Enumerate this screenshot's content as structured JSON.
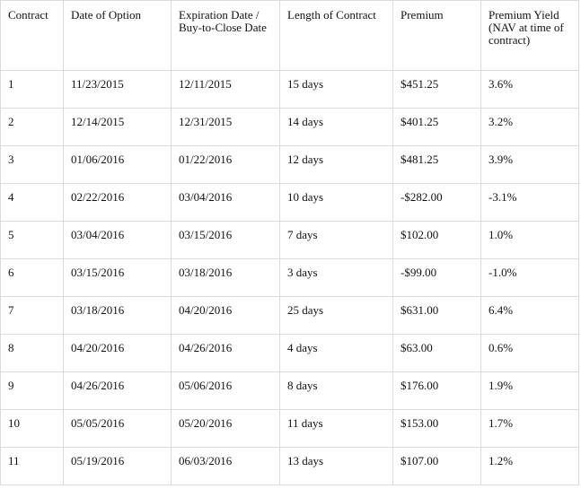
{
  "table": {
    "header": [
      "Contract",
      "Date of Option",
      "Expiration Date / Buy-to-Close Date",
      "Length of Contract",
      "Premium",
      "Premium Yield (NAV at time of contract)"
    ],
    "rows": [
      [
        "1",
        "11/23/2015",
        "12/11/2015",
        "15 days",
        "$451.25",
        "3.6%"
      ],
      [
        "2",
        "12/14/2015",
        "12/31/2015",
        "14 days",
        "$401.25",
        "3.2%"
      ],
      [
        "3",
        "01/06/2016",
        "01/22/2016",
        "12 days",
        "$481.25",
        "3.9%"
      ],
      [
        "4",
        "02/22/2016",
        "03/04/2016",
        "10 days",
        "-$282.00",
        "-3.1%"
      ],
      [
        "5",
        "03/04/2016",
        "03/15/2016",
        "7 days",
        "$102.00",
        "1.0%"
      ],
      [
        "6",
        "03/15/2016",
        "03/18/2016",
        "3 days",
        "-$99.00",
        "-1.0%"
      ],
      [
        "7",
        "03/18/2016",
        "04/20/2016",
        "25 days",
        "$631.00",
        "6.4%"
      ],
      [
        "8",
        "04/20/2016",
        "04/26/2016",
        "4 days",
        "$63.00",
        "0.6%"
      ],
      [
        "9",
        "04/26/2016",
        "05/06/2016",
        "8 days",
        "$176.00",
        "1.9%"
      ],
      [
        "10",
        "05/05/2016",
        "05/20/2016",
        "11 days",
        "$153.00",
        "1.7%"
      ],
      [
        "11",
        "05/19/2016",
        "06/03/2016",
        "13 days",
        "$107.00",
        "1.2%"
      ]
    ]
  }
}
